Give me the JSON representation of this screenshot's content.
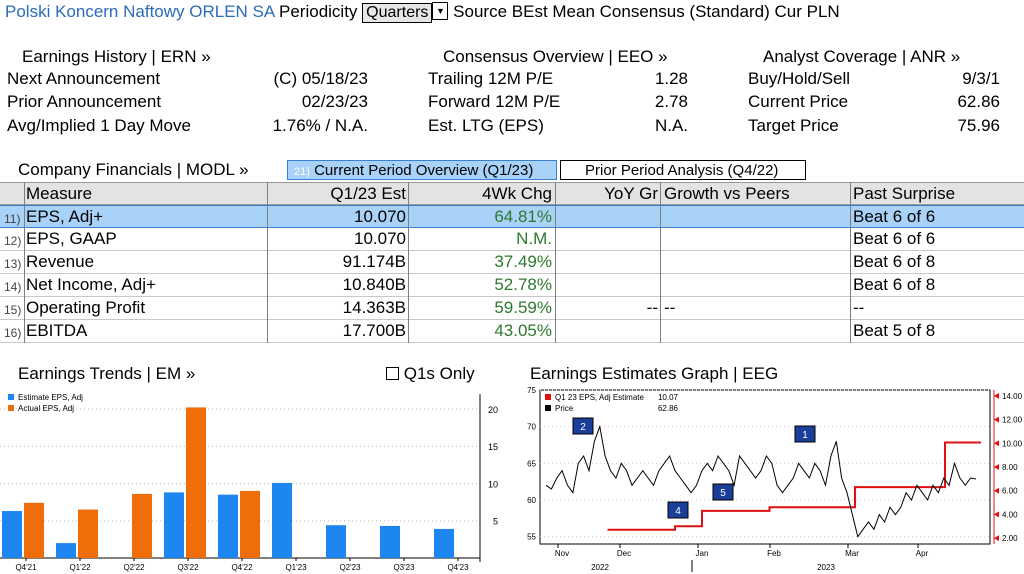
{
  "header": {
    "company": "Polski Koncern Naftowy ORLEN SA",
    "periodicity_label": "Periodicity",
    "periodicity_value": "Quarters",
    "source_label": "Source",
    "source_value": "BEst Mean Consensus (Standard)",
    "cur_label": "Cur",
    "cur_value": "PLN"
  },
  "earnings_history": {
    "title": "Earnings History | ERN »",
    "rows": [
      {
        "label": "Next Announcement",
        "value": "(C)  05/18/23"
      },
      {
        "label": "Prior Announcement",
        "value": "02/23/23"
      },
      {
        "label": "Avg/Implied 1 Day Move",
        "value": "1.76% / N.A."
      }
    ]
  },
  "consensus_overview": {
    "title": "Consensus Overview | EEO »",
    "rows": [
      {
        "label": "Trailing 12M P/E",
        "value": "1.28"
      },
      {
        "label": "Forward 12M P/E",
        "value": "2.78"
      },
      {
        "label": "Est. LTG (EPS)",
        "value": "N.A."
      }
    ]
  },
  "analyst_coverage": {
    "title": "Analyst Coverage | ANR »",
    "rows": [
      {
        "label": "Buy/Hold/Sell",
        "value": "9/3/1"
      },
      {
        "label": "Current Price",
        "value": "62.86"
      },
      {
        "label": "Target Price",
        "value": "75.96"
      }
    ]
  },
  "financials": {
    "title": "Company Financials | MODL »",
    "tab_current_num": "21)",
    "tab_current": "Current Period Overview (Q1/23)",
    "tab_prior": "Prior Period Analysis (Q4/22)",
    "columns": [
      "Measure",
      "Q1/23 Est",
      "4Wk Chg",
      "YoY Gr",
      "Growth vs Peers",
      "Past Surprise"
    ],
    "rows": [
      {
        "num": "11)",
        "measure": "EPS, Adj+",
        "est": "10.070",
        "chg": "64.81%",
        "yoy": "",
        "peers": "",
        "surprise": "Beat 6 of 6"
      },
      {
        "num": "12)",
        "measure": "EPS, GAAP",
        "est": "10.070",
        "chg": "N.M.",
        "yoy": "",
        "peers": "",
        "surprise": "Beat 6 of 6"
      },
      {
        "num": "13)",
        "measure": "Revenue",
        "est": "91.174B",
        "chg": "37.49%",
        "yoy": "",
        "peers": "",
        "surprise": "Beat 6 of 8"
      },
      {
        "num": "14)",
        "measure": "Net Income, Adj+",
        "est": "10.840B",
        "chg": "52.78%",
        "yoy": "",
        "peers": "",
        "surprise": "Beat 6 of 8"
      },
      {
        "num": "15)",
        "measure": "Operating Profit",
        "est": "14.363B",
        "chg": "59.59%",
        "yoy": "--",
        "peers": "--",
        "surprise": "--"
      },
      {
        "num": "16)",
        "measure": "EBITDA",
        "est": "17.700B",
        "chg": "43.05%",
        "yoy": "",
        "peers": "",
        "surprise": "Beat 5 of 8"
      }
    ]
  },
  "earnings_trends": {
    "title": "Earnings Trends | EM »",
    "q1s_only": "Q1s Only",
    "legend": [
      "Estimate EPS, Adj",
      "Actual EPS, Adj"
    ],
    "colors": {
      "estimate": "#1e86f0",
      "actual": "#f06e0a"
    },
    "categories": [
      "Q4'21",
      "Q1'22",
      "Q2'22",
      "Q3'22",
      "Q4'22",
      "Q1'23",
      "Q2'23",
      "Q3'23",
      "Q4'23"
    ],
    "estimate": [
      6.3,
      2.0,
      null,
      8.8,
      8.5,
      10.07,
      4.4,
      4.3,
      3.9
    ],
    "actual": [
      7.4,
      6.5,
      8.6,
      20.2,
      9.0,
      null,
      null,
      null,
      null
    ],
    "y_ticks": [
      "5",
      "10",
      "15",
      "20"
    ],
    "ylim": [
      0,
      22
    ]
  },
  "earnings_estimates": {
    "title": "Earnings Estimates Graph | EEG",
    "legend": [
      {
        "label": "Q1 23 EPS, Adj Estimate",
        "value": "10.07",
        "color": "#e01010"
      },
      {
        "label": "Price",
        "value": "62.86",
        "color": "#000000"
      }
    ],
    "left_ticks": [
      "55",
      "60",
      "65",
      "70",
      "75"
    ],
    "right_ticks": [
      "2.00",
      "4.00",
      "6.00",
      "8.00",
      "10.00",
      "12.00",
      "14.00"
    ],
    "month_labels": [
      "Nov",
      "Dec",
      "Jan",
      "Feb",
      "Mar",
      "Apr"
    ],
    "year_labels": [
      "2022",
      "2023"
    ],
    "event_labels": [
      "2",
      "4",
      "5",
      "1"
    ],
    "price_ylim": [
      54,
      75
    ],
    "estimate_ylim": [
      1.5,
      14.5
    ],
    "price": [
      62,
      61.5,
      63,
      64,
      62,
      61,
      65,
      66,
      64,
      68,
      70,
      66,
      64,
      63,
      65,
      64,
      62,
      63,
      64,
      63,
      62,
      64,
      65,
      66,
      64,
      63,
      62,
      61,
      62,
      64,
      65,
      64,
      66,
      65,
      64,
      62,
      66,
      65,
      64,
      63,
      64,
      66,
      65,
      62,
      61,
      62,
      63,
      65,
      64,
      63,
      65,
      64,
      62,
      66,
      68,
      63,
      61,
      58,
      55,
      56,
      57,
      56,
      58,
      57,
      59,
      58,
      59,
      61,
      60,
      62,
      61,
      60,
      62,
      61,
      63,
      62,
      65,
      63,
      62,
      63,
      62.86
    ],
    "estimate_steps": [
      [
        0.15,
        2.7
      ],
      [
        0.3,
        2.7
      ],
      [
        0.3,
        3.0
      ],
      [
        0.36,
        3.0
      ],
      [
        0.36,
        4.3
      ],
      [
        0.51,
        4.3
      ],
      [
        0.51,
        4.6
      ],
      [
        0.7,
        4.6
      ],
      [
        0.7,
        6.3
      ],
      [
        0.9,
        6.3
      ],
      [
        0.9,
        10.07
      ],
      [
        0.98,
        10.07
      ]
    ]
  }
}
